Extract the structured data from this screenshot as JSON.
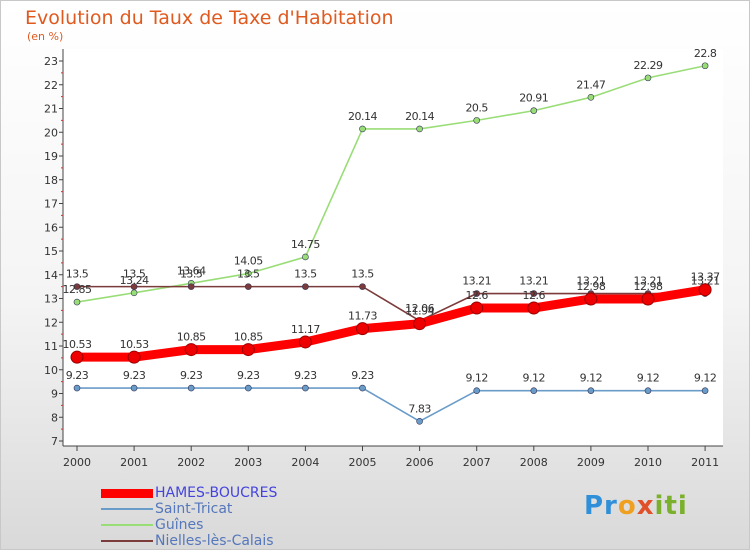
{
  "header": {
    "title": "Evolution du Taux de Taxe d'Habitation",
    "unit": "(en %)"
  },
  "logo": {
    "text": "Proxiti"
  },
  "chart_data": {
    "type": "line",
    "title": "Evolution du Taux de Taxe d'Habitation",
    "ylabel": "(en %)",
    "xlabel": "",
    "x": [
      "2000",
      "2001",
      "2002",
      "2003",
      "2004",
      "2005",
      "2006",
      "2007",
      "2008",
      "2009",
      "2010",
      "2011"
    ],
    "yticks": [
      7,
      8,
      9,
      10,
      11,
      12,
      13,
      14,
      15,
      16,
      17,
      18,
      19,
      20,
      21,
      22,
      23
    ],
    "ylim": [
      7,
      23
    ],
    "grid": false,
    "legend": "bottom-left",
    "series": [
      {
        "name": "HAMES-BOUCRES",
        "color": "#ff0000",
        "bold": true,
        "values": [
          10.53,
          10.53,
          10.85,
          10.85,
          11.17,
          11.73,
          11.94,
          12.6,
          12.6,
          12.98,
          12.98,
          13.37
        ],
        "labels": [
          "10.53",
          "10.53",
          "10.85",
          "10.85",
          "11.17",
          "11.73",
          "11.94",
          "12.6",
          "12.6",
          "12.98",
          "12.98",
          "13.37"
        ]
      },
      {
        "name": "Saint-Tricat",
        "color": "#6a9cc9",
        "values": [
          9.23,
          9.23,
          9.23,
          9.23,
          9.23,
          9.23,
          7.83,
          9.12,
          9.12,
          9.12,
          9.12,
          9.12
        ],
        "labels": [
          "9.23",
          "9.23",
          "9.23",
          "9.23",
          "9.23",
          "9.23",
          "7.83",
          "9.12",
          "9.12",
          "9.12",
          "9.12",
          "9.12"
        ]
      },
      {
        "name": "Guînes",
        "color": "#99dd77",
        "values": [
          12.85,
          13.24,
          13.64,
          14.05,
          14.75,
          20.14,
          20.14,
          20.5,
          20.91,
          21.47,
          22.29,
          22.8
        ],
        "labels": [
          "12.85",
          "13.24",
          "13.64",
          "14.05",
          "14.75",
          "20.14",
          "20.14",
          "20.5",
          "20.91",
          "21.47",
          "22.29",
          "22.8"
        ]
      },
      {
        "name": "Nielles-lès-Calais",
        "color": "#7b3b3b",
        "values": [
          13.5,
          13.5,
          13.5,
          13.5,
          13.5,
          13.5,
          12.06,
          13.21,
          13.21,
          13.21,
          13.21,
          13.21
        ],
        "labels": [
          "13.5",
          "13.5",
          "13.5",
          "13.5",
          "13.5",
          "13.5",
          "12.06",
          "13.21",
          "13.21",
          "13.21",
          "13.21",
          "13.21"
        ]
      }
    ]
  }
}
